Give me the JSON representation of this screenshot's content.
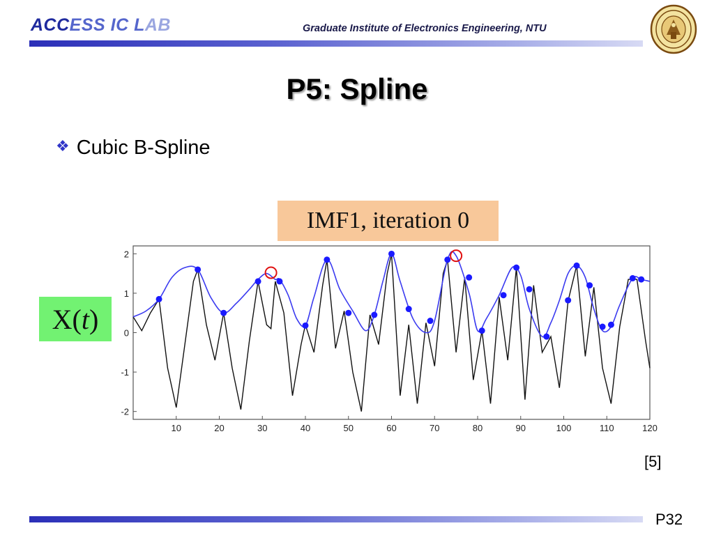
{
  "header": {
    "logo_part1": "ACC",
    "logo_part2": "ESS IC L",
    "logo_part3": "AB",
    "institute": "Graduate Institute of Electronics Engineering, NTU"
  },
  "slide": {
    "title": "P5: Spline",
    "bullet": "Cubic B-Spline",
    "reference": "[5]",
    "page": "P32"
  },
  "figure": {
    "title_box": "IMF1, iteration 0",
    "signal_label_prefix": "X(",
    "signal_label_var": "t",
    "signal_label_suffix": ")"
  },
  "colors": {
    "accent": "#2b2fb8",
    "envelope": "#3b3bf0",
    "signal": "#111111",
    "highlight": "#e01010",
    "title_box_bg": "#f8c89a",
    "label_bg": "#72f272"
  },
  "chart_data": {
    "type": "line",
    "xlim": [
      0,
      120
    ],
    "ylim": [
      -2.2,
      2.2
    ],
    "x_ticks": [
      10,
      20,
      30,
      40,
      50,
      60,
      70,
      80,
      90,
      100,
      110,
      120
    ],
    "y_ticks": [
      2,
      1,
      0,
      -1,
      -2
    ],
    "grid": false,
    "legend": "none",
    "series": [
      {
        "role": "signal",
        "x": [
          0,
          2,
          4,
          6,
          8,
          10,
          12,
          14,
          15,
          17,
          19,
          21,
          23,
          25,
          27,
          29,
          31,
          32,
          33,
          35,
          37,
          39,
          40,
          42,
          44,
          45,
          47,
          49,
          51,
          53,
          55,
          57,
          59,
          60,
          62,
          64,
          66,
          68,
          70,
          72,
          73,
          75,
          77,
          79,
          81,
          83,
          85,
          87,
          89,
          91,
          93,
          95,
          97,
          99,
          101,
          103,
          105,
          107,
          109,
          111,
          113,
          115,
          117,
          119,
          120
        ],
        "y": [
          0.4,
          0.05,
          0.5,
          0.85,
          -0.9,
          -1.9,
          -0.3,
          1.3,
          1.6,
          0.2,
          -0.7,
          0.5,
          -0.9,
          -1.95,
          -0.2,
          1.3,
          0.2,
          0.1,
          1.3,
          0.5,
          -1.6,
          -0.3,
          0.2,
          -0.5,
          1.2,
          1.85,
          -0.4,
          0.55,
          -1.0,
          -2.0,
          0.45,
          -0.3,
          1.5,
          2.0,
          -1.6,
          0.2,
          -1.8,
          0.25,
          -0.85,
          1.5,
          1.85,
          -0.5,
          1.4,
          -1.2,
          0.05,
          -1.8,
          0.9,
          -0.7,
          1.65,
          -1.7,
          1.2,
          -0.5,
          -0.1,
          -1.4,
          0.8,
          1.7,
          -0.6,
          1.15,
          -0.9,
          -1.8,
          0.15,
          1.35,
          1.35,
          -0.2,
          -0.9
        ]
      },
      {
        "role": "envelope",
        "x": [
          0,
          3,
          6,
          9,
          12,
          15,
          18,
          21,
          24,
          27,
          29,
          31,
          33,
          34,
          36,
          38,
          40,
          42,
          45,
          48,
          51,
          54,
          56,
          58,
          60,
          62,
          65,
          68,
          70,
          73,
          75,
          78,
          80,
          82,
          85,
          88,
          90,
          92,
          95,
          97,
          99,
          101,
          103,
          105,
          107,
          109,
          111,
          113,
          116,
          118,
          120
        ],
        "y": [
          0.4,
          0.55,
          0.85,
          1.4,
          1.65,
          1.6,
          0.9,
          0.5,
          0.75,
          1.1,
          1.35,
          1.5,
          1.35,
          1.35,
          0.95,
          0.35,
          0.18,
          0.9,
          1.85,
          1.1,
          0.55,
          0.05,
          0.45,
          1.3,
          2.0,
          1.3,
          0.35,
          0.0,
          0.3,
          1.85,
          1.95,
          1.0,
          0.05,
          0.35,
          0.95,
          1.65,
          1.45,
          0.6,
          -0.1,
          0.25,
          0.82,
          1.5,
          1.7,
          1.4,
          0.6,
          0.05,
          0.15,
          0.7,
          1.38,
          1.35,
          1.3
        ]
      },
      {
        "role": "markers",
        "x": [
          6,
          15,
          21,
          29,
          34,
          40,
          45,
          50,
          56,
          60,
          64,
          69,
          73,
          78,
          81,
          86,
          89,
          92,
          96,
          101,
          103,
          106,
          109,
          111,
          116,
          118
        ],
        "y": [
          0.85,
          1.6,
          0.5,
          1.3,
          1.3,
          0.18,
          1.85,
          0.5,
          0.45,
          2.0,
          0.6,
          0.3,
          1.85,
          1.4,
          0.05,
          0.95,
          1.65,
          1.1,
          -0.1,
          0.82,
          1.7,
          1.2,
          0.15,
          0.2,
          1.38,
          1.35
        ]
      },
      {
        "role": "highlight",
        "x": [
          32,
          75
        ],
        "y": [
          1.52,
          1.95
        ]
      }
    ]
  }
}
